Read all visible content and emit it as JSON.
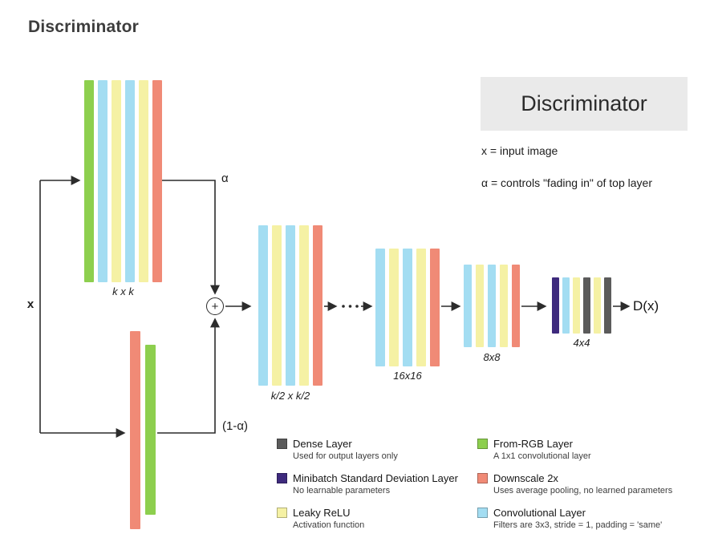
{
  "page": {
    "heading": "Discriminator"
  },
  "colors": {
    "green": "#8dcf4e",
    "blue": "#a3ddf2",
    "yellow": "#f5f1a4",
    "salmon": "#f08a76",
    "purple": "#3e2a7d",
    "gray": "#5b5b5b"
  },
  "diagram": {
    "input_label": "x",
    "alpha_label": "α",
    "one_minus_alpha_label": "(1-α)",
    "sum_symbol": "+",
    "output_label": "D(x)",
    "blocks": [
      {
        "label": "k x k",
        "colors": [
          "green",
          "blue",
          "yellow",
          "blue",
          "yellow",
          "salmon"
        ]
      },
      {
        "label": "",
        "colors": [
          "salmon",
          "green"
        ]
      },
      {
        "label": "k/2 x k/2",
        "colors": [
          "blue",
          "yellow",
          "blue",
          "yellow",
          "salmon"
        ]
      },
      {
        "label": "16x16",
        "colors": [
          "blue",
          "yellow",
          "blue",
          "yellow",
          "salmon"
        ]
      },
      {
        "label": "8x8",
        "colors": [
          "blue",
          "yellow",
          "blue",
          "yellow",
          "salmon"
        ]
      },
      {
        "label": "4x4",
        "colors": [
          "purple",
          "blue",
          "yellow",
          "gray",
          "yellow",
          "gray"
        ]
      }
    ]
  },
  "info": {
    "title": "Discriminator",
    "note_x": "x = input image",
    "note_alpha": "α = controls \"fading in\" of top layer"
  },
  "legend": {
    "items": [
      {
        "name": "Dense Layer",
        "desc": "Used for output layers only",
        "color": "gray"
      },
      {
        "name": "Minibatch Standard Deviation Layer",
        "desc": "No learnable parameters",
        "color": "purple"
      },
      {
        "name": "Leaky ReLU",
        "desc": "Activation function",
        "color": "yellow"
      },
      {
        "name": "From-RGB Layer",
        "desc": "A 1x1 convolutional layer",
        "color": "green"
      },
      {
        "name": "Downscale 2x",
        "desc": "Uses average pooling, no learned parameters",
        "color": "salmon"
      },
      {
        "name": "Convolutional Layer",
        "desc": "Filters are 3x3, stride = 1, padding = 'same'",
        "color": "blue"
      }
    ]
  }
}
